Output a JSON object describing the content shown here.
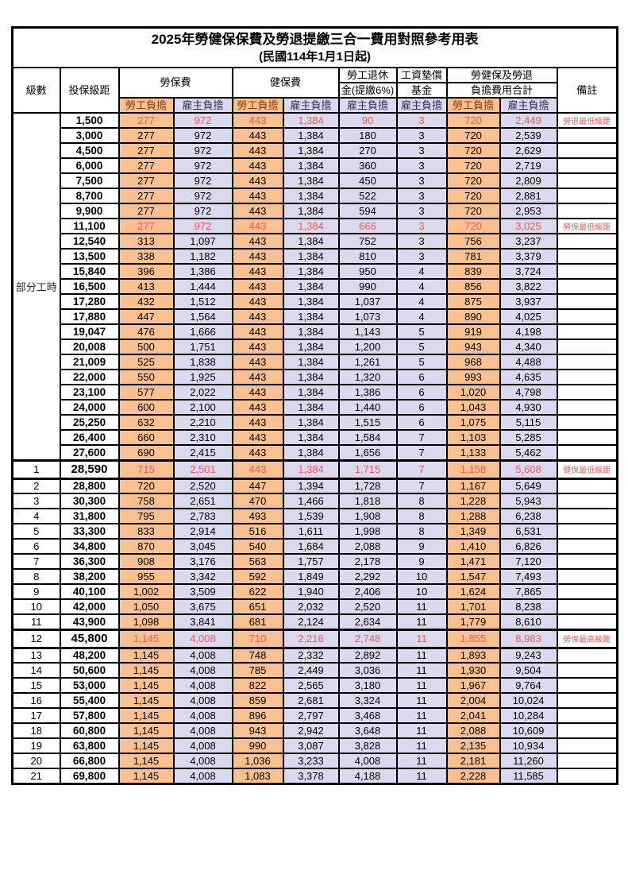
{
  "title": "2025年勞健保保費及勞退提繳三合一費用對照參考用表",
  "subtitle": "(民國114年1月1日起)",
  "colors": {
    "employee_column_bg": "#FAC090",
    "employer_column_bg": "#DCD8EE",
    "highlight_text": "#F25B5B",
    "border": "#000000"
  },
  "header": {
    "level": "級數",
    "bracket": "投保級距",
    "labor_fee": "勞保費",
    "health_fee": "健保費",
    "pension_line1": "勞工退休",
    "pension_line2": "金(提繳6%)",
    "fund_line1": "工資墊償",
    "fund_line2": "基金",
    "total_line1": "勞健保及勞退",
    "total_line2": "負擔費用合計",
    "remark": "備註",
    "employee": "勞工負擔",
    "employer": "雇主負擔"
  },
  "part_time_label": "部分工時",
  "part_time_rowspan": 23,
  "rows": [
    {
      "level": "",
      "bracket": "1,500",
      "v": [
        "277",
        "972",
        "443",
        "1,384",
        "90",
        "3",
        "720",
        "2,449"
      ],
      "remark": "勞退最低級距",
      "red": true,
      "emph": false
    },
    {
      "level": "",
      "bracket": "3,000",
      "v": [
        "277",
        "972",
        "443",
        "1,384",
        "180",
        "3",
        "720",
        "2,539"
      ],
      "remark": "",
      "red": false,
      "emph": false
    },
    {
      "level": "",
      "bracket": "4,500",
      "v": [
        "277",
        "972",
        "443",
        "1,384",
        "270",
        "3",
        "720",
        "2,629"
      ],
      "remark": "",
      "red": false,
      "emph": false
    },
    {
      "level": "",
      "bracket": "6,000",
      "v": [
        "277",
        "972",
        "443",
        "1,384",
        "360",
        "3",
        "720",
        "2,719"
      ],
      "remark": "",
      "red": false,
      "emph": false
    },
    {
      "level": "",
      "bracket": "7,500",
      "v": [
        "277",
        "972",
        "443",
        "1,384",
        "450",
        "3",
        "720",
        "2,809"
      ],
      "remark": "",
      "red": false,
      "emph": false
    },
    {
      "level": "",
      "bracket": "8,700",
      "v": [
        "277",
        "972",
        "443",
        "1,384",
        "522",
        "3",
        "720",
        "2,881"
      ],
      "remark": "",
      "red": false,
      "emph": false
    },
    {
      "level": "",
      "bracket": "9,900",
      "v": [
        "277",
        "972",
        "443",
        "1,384",
        "594",
        "3",
        "720",
        "2,953"
      ],
      "remark": "",
      "red": false,
      "emph": false
    },
    {
      "level": "",
      "bracket": "11,100",
      "v": [
        "277",
        "972",
        "443",
        "1,384",
        "666",
        "3",
        "720",
        "3,025"
      ],
      "remark": "勞保最低級距",
      "red": true,
      "emph": false
    },
    {
      "level": "",
      "bracket": "12,540",
      "v": [
        "313",
        "1,097",
        "443",
        "1,384",
        "752",
        "3",
        "756",
        "3,237"
      ],
      "remark": "",
      "red": false,
      "emph": false
    },
    {
      "level": "",
      "bracket": "13,500",
      "v": [
        "338",
        "1,182",
        "443",
        "1,384",
        "810",
        "3",
        "781",
        "3,379"
      ],
      "remark": "",
      "red": false,
      "emph": false
    },
    {
      "level": "",
      "bracket": "15,840",
      "v": [
        "396",
        "1,386",
        "443",
        "1,384",
        "950",
        "4",
        "839",
        "3,724"
      ],
      "remark": "",
      "red": false,
      "emph": false
    },
    {
      "level": "",
      "bracket": "16,500",
      "v": [
        "413",
        "1,444",
        "443",
        "1,384",
        "990",
        "4",
        "856",
        "3,822"
      ],
      "remark": "",
      "red": false,
      "emph": false
    },
    {
      "level": "",
      "bracket": "17,280",
      "v": [
        "432",
        "1,512",
        "443",
        "1,384",
        "1,037",
        "4",
        "875",
        "3,937"
      ],
      "remark": "",
      "red": false,
      "emph": false
    },
    {
      "level": "",
      "bracket": "17,880",
      "v": [
        "447",
        "1,564",
        "443",
        "1,384",
        "1,073",
        "4",
        "890",
        "4,025"
      ],
      "remark": "",
      "red": false,
      "emph": false
    },
    {
      "level": "",
      "bracket": "19,047",
      "v": [
        "476",
        "1,666",
        "443",
        "1,384",
        "1,143",
        "5",
        "919",
        "4,198"
      ],
      "remark": "",
      "red": false,
      "emph": false
    },
    {
      "level": "",
      "bracket": "20,008",
      "v": [
        "500",
        "1,751",
        "443",
        "1,384",
        "1,200",
        "5",
        "943",
        "4,340"
      ],
      "remark": "",
      "red": false,
      "emph": false
    },
    {
      "level": "",
      "bracket": "21,009",
      "v": [
        "525",
        "1,838",
        "443",
        "1,384",
        "1,261",
        "5",
        "968",
        "4,488"
      ],
      "remark": "",
      "red": false,
      "emph": false
    },
    {
      "level": "",
      "bracket": "22,000",
      "v": [
        "550",
        "1,925",
        "443",
        "1,384",
        "1,320",
        "6",
        "993",
        "4,635"
      ],
      "remark": "",
      "red": false,
      "emph": false
    },
    {
      "level": "",
      "bracket": "23,100",
      "v": [
        "577",
        "2,022",
        "443",
        "1,384",
        "1,386",
        "6",
        "1,020",
        "4,798"
      ],
      "remark": "",
      "red": false,
      "emph": false
    },
    {
      "level": "",
      "bracket": "24,000",
      "v": [
        "600",
        "2,100",
        "443",
        "1,384",
        "1,440",
        "6",
        "1,043",
        "4,930"
      ],
      "remark": "",
      "red": false,
      "emph": false
    },
    {
      "level": "",
      "bracket": "25,250",
      "v": [
        "632",
        "2,210",
        "443",
        "1,384",
        "1,515",
        "6",
        "1,075",
        "5,115"
      ],
      "remark": "",
      "red": false,
      "emph": false
    },
    {
      "level": "",
      "bracket": "26,400",
      "v": [
        "660",
        "2,310",
        "443",
        "1,384",
        "1,584",
        "7",
        "1,103",
        "5,285"
      ],
      "remark": "",
      "red": false,
      "emph": false
    },
    {
      "level": "",
      "bracket": "27,600",
      "v": [
        "690",
        "2,415",
        "443",
        "1,384",
        "1,656",
        "7",
        "1,133",
        "5,462"
      ],
      "remark": "",
      "red": false,
      "emph": false
    },
    {
      "level": "1",
      "bracket": "28,590",
      "v": [
        "715",
        "2,501",
        "443",
        "1,384",
        "1,715",
        "7",
        "1,158",
        "5,608"
      ],
      "remark": "健保最低級距",
      "red": true,
      "emph": true
    },
    {
      "level": "2",
      "bracket": "28,800",
      "v": [
        "720",
        "2,520",
        "447",
        "1,394",
        "1,728",
        "7",
        "1,167",
        "5,649"
      ],
      "remark": "",
      "red": false,
      "emph": false
    },
    {
      "level": "3",
      "bracket": "30,300",
      "v": [
        "758",
        "2,651",
        "470",
        "1,466",
        "1,818",
        "8",
        "1,228",
        "5,943"
      ],
      "remark": "",
      "red": false,
      "emph": false
    },
    {
      "level": "4",
      "bracket": "31,800",
      "v": [
        "795",
        "2,783",
        "493",
        "1,539",
        "1,908",
        "8",
        "1,288",
        "6,238"
      ],
      "remark": "",
      "red": false,
      "emph": false
    },
    {
      "level": "5",
      "bracket": "33,300",
      "v": [
        "833",
        "2,914",
        "516",
        "1,611",
        "1,998",
        "8",
        "1,349",
        "6,531"
      ],
      "remark": "",
      "red": false,
      "emph": false
    },
    {
      "level": "6",
      "bracket": "34,800",
      "v": [
        "870",
        "3,045",
        "540",
        "1,684",
        "2,088",
        "9",
        "1,410",
        "6,826"
      ],
      "remark": "",
      "red": false,
      "emph": false
    },
    {
      "level": "7",
      "bracket": "36,300",
      "v": [
        "908",
        "3,176",
        "563",
        "1,757",
        "2,178",
        "9",
        "1,471",
        "7,120"
      ],
      "remark": "",
      "red": false,
      "emph": false
    },
    {
      "level": "8",
      "bracket": "38,200",
      "v": [
        "955",
        "3,342",
        "592",
        "1,849",
        "2,292",
        "10",
        "1,547",
        "7,493"
      ],
      "remark": "",
      "red": false,
      "emph": false
    },
    {
      "level": "9",
      "bracket": "40,100",
      "v": [
        "1,002",
        "3,509",
        "622",
        "1,940",
        "2,406",
        "10",
        "1,624",
        "7,865"
      ],
      "remark": "",
      "red": false,
      "emph": false
    },
    {
      "level": "10",
      "bracket": "42,000",
      "v": [
        "1,050",
        "3,675",
        "651",
        "2,032",
        "2,520",
        "11",
        "1,701",
        "8,238"
      ],
      "remark": "",
      "red": false,
      "emph": false
    },
    {
      "level": "11",
      "bracket": "43,900",
      "v": [
        "1,098",
        "3,841",
        "681",
        "2,124",
        "2,634",
        "11",
        "1,779",
        "8,610"
      ],
      "remark": "",
      "red": false,
      "emph": false
    },
    {
      "level": "12",
      "bracket": "45,800",
      "v": [
        "1,145",
        "4,008",
        "710",
        "2,216",
        "2,748",
        "11",
        "1,855",
        "8,983"
      ],
      "remark": "勞保最高級距",
      "red": true,
      "emph": true
    },
    {
      "level": "13",
      "bracket": "48,200",
      "v": [
        "1,145",
        "4,008",
        "748",
        "2,332",
        "2,892",
        "11",
        "1,893",
        "9,243"
      ],
      "remark": "",
      "red": false,
      "emph": false
    },
    {
      "level": "14",
      "bracket": "50,600",
      "v": [
        "1,145",
        "4,008",
        "785",
        "2,449",
        "3,036",
        "11",
        "1,930",
        "9,504"
      ],
      "remark": "",
      "red": false,
      "emph": false
    },
    {
      "level": "15",
      "bracket": "53,000",
      "v": [
        "1,145",
        "4,008",
        "822",
        "2,565",
        "3,180",
        "11",
        "1,967",
        "9,764"
      ],
      "remark": "",
      "red": false,
      "emph": false
    },
    {
      "level": "16",
      "bracket": "55,400",
      "v": [
        "1,145",
        "4,008",
        "859",
        "2,681",
        "3,324",
        "11",
        "2,004",
        "10,024"
      ],
      "remark": "",
      "red": false,
      "emph": false
    },
    {
      "level": "17",
      "bracket": "57,800",
      "v": [
        "1,145",
        "4,008",
        "896",
        "2,797",
        "3,468",
        "11",
        "2,041",
        "10,284"
      ],
      "remark": "",
      "red": false,
      "emph": false
    },
    {
      "level": "18",
      "bracket": "60,800",
      "v": [
        "1,145",
        "4,008",
        "943",
        "2,942",
        "3,648",
        "11",
        "2,088",
        "10,609"
      ],
      "remark": "",
      "red": false,
      "emph": false
    },
    {
      "level": "19",
      "bracket": "63,800",
      "v": [
        "1,145",
        "4,008",
        "990",
        "3,087",
        "3,828",
        "11",
        "2,135",
        "10,934"
      ],
      "remark": "",
      "red": false,
      "emph": false
    },
    {
      "level": "20",
      "bracket": "66,800",
      "v": [
        "1,145",
        "4,008",
        "1,036",
        "3,233",
        "4,008",
        "11",
        "2,181",
        "11,260"
      ],
      "remark": "",
      "red": false,
      "emph": false
    },
    {
      "level": "21",
      "bracket": "69,800",
      "v": [
        "1,145",
        "4,008",
        "1,083",
        "3,378",
        "4,188",
        "11",
        "2,228",
        "11,585"
      ],
      "remark": "",
      "red": false,
      "emph": false
    }
  ]
}
